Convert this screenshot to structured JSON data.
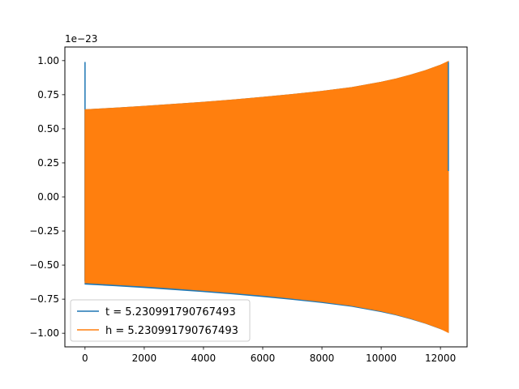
{
  "chart_data": {
    "type": "line",
    "title": "",
    "xlabel": "",
    "ylabel": "",
    "y_offset_label": "1e−23",
    "xlim": [
      -680,
      12900
    ],
    "ylim": [
      -1.1,
      1.1
    ],
    "x_ticks": [
      0,
      2000,
      4000,
      6000,
      8000,
      10000,
      12000
    ],
    "x_tick_labels": [
      "0",
      "2000",
      "4000",
      "6000",
      "8000",
      "10000",
      "12000"
    ],
    "y_ticks": [
      -1.0,
      -0.75,
      -0.5,
      -0.25,
      0.0,
      0.25,
      0.5,
      0.75,
      1.0
    ],
    "y_tick_labels": [
      "−1.00",
      "−0.75",
      "−0.50",
      "−0.25",
      "0.00",
      "0.25",
      "0.50",
      "0.75",
      "1.00"
    ],
    "grid": false,
    "legend_position": "lower-left",
    "series": [
      {
        "name": "t = 5.230991790767493",
        "color": "#1f77b4",
        "x": [
          0,
          0,
          0,
          0,
          12268,
          12268
        ],
        "y": [
          0.99,
          -0.62,
          0.19,
          0.64,
          0.19,
          0.99
        ],
        "envelope": {
          "x": [
            0,
            1000,
            2000,
            3000,
            4000,
            5000,
            6000,
            7000,
            8000,
            9000,
            10000,
            10500,
            11000,
            11500,
            12000,
            12268
          ],
          "upper": [
            0.64,
            0.652,
            0.665,
            0.68,
            0.695,
            0.712,
            0.731,
            0.752,
            0.775,
            0.803,
            0.842,
            0.866,
            0.895,
            0.928,
            0.967,
            0.99
          ],
          "lower": [
            -0.64,
            -0.652,
            -0.665,
            -0.68,
            -0.695,
            -0.712,
            -0.731,
            -0.752,
            -0.775,
            -0.803,
            -0.842,
            -0.866,
            -0.895,
            -0.928,
            -0.967,
            -0.99
          ]
        }
      },
      {
        "name": "h = 5.230991790767493",
        "color": "#ff7f0e",
        "envelope": {
          "x": [
            0,
            1000,
            2000,
            3000,
            4000,
            5000,
            6000,
            7000,
            8000,
            9000,
            10000,
            10500,
            11000,
            11500,
            12000,
            12268
          ],
          "upper": [
            0.64,
            0.652,
            0.665,
            0.68,
            0.695,
            0.712,
            0.731,
            0.752,
            0.775,
            0.803,
            0.842,
            0.866,
            0.895,
            0.928,
            0.967,
            0.995
          ],
          "lower": [
            -0.63,
            -0.642,
            -0.655,
            -0.67,
            -0.686,
            -0.703,
            -0.722,
            -0.744,
            -0.768,
            -0.797,
            -0.837,
            -0.862,
            -0.892,
            -0.926,
            -0.966,
            -0.995
          ]
        }
      }
    ]
  }
}
